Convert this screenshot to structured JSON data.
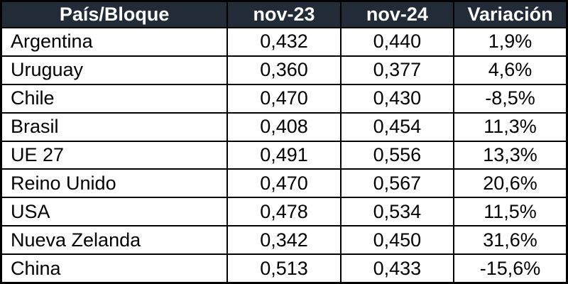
{
  "table": {
    "headers": [
      "País/Bloque",
      "nov-23",
      "nov-24",
      "Variación"
    ],
    "rows": [
      [
        "Argentina",
        "0,432",
        "0,440",
        "1,9%"
      ],
      [
        "Uruguay",
        "0,360",
        "0,377",
        "4,6%"
      ],
      [
        "Chile",
        "0,470",
        "0,430",
        "-8,5%"
      ],
      [
        "Brasil",
        "0,408",
        "0,454",
        "11,3%"
      ],
      [
        "UE 27",
        "0,491",
        "0,556",
        "13,3%"
      ],
      [
        "Reino Unido",
        "0,470",
        "0,567",
        "20,6%"
      ],
      [
        "USA",
        "0,478",
        "0,534",
        "11,5%"
      ],
      [
        "Nueva Zelanda",
        "0,342",
        "0,450",
        "31,6%"
      ],
      [
        "China",
        "0,513",
        "0,433",
        "-15,6%"
      ]
    ]
  },
  "colors": {
    "header_bg": "#222B38",
    "header_text": "#FFFFFF",
    "border": "#000000",
    "row_bg": "#FFFFFF",
    "body_text": "#000000"
  },
  "chart_data": {
    "type": "table",
    "title": "",
    "columns": [
      "País/Bloque",
      "nov-23",
      "nov-24",
      "Variación"
    ],
    "categories": [
      "Argentina",
      "Uruguay",
      "Chile",
      "Brasil",
      "UE 27",
      "Reino Unido",
      "USA",
      "Nueva Zelanda",
      "China"
    ],
    "series": [
      {
        "name": "nov-23",
        "values": [
          0.432,
          0.36,
          0.47,
          0.408,
          0.491,
          0.47,
          0.478,
          0.342,
          0.513
        ]
      },
      {
        "name": "nov-24",
        "values": [
          0.44,
          0.377,
          0.43,
          0.454,
          0.556,
          0.567,
          0.534,
          0.45,
          0.433
        ]
      },
      {
        "name": "Variación (%)",
        "values": [
          1.9,
          4.6,
          -8.5,
          11.3,
          13.3,
          20.6,
          11.5,
          31.6,
          -15.6
        ]
      }
    ]
  }
}
